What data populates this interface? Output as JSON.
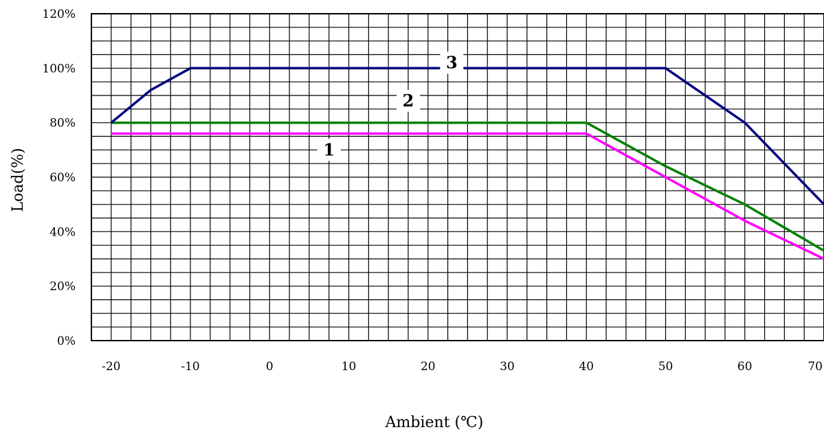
{
  "chart_data": {
    "type": "line",
    "xlabel": "Ambient (℃)",
    "ylabel": "Load(%)",
    "xlim": [
      -22.5,
      70
    ],
    "ylim": [
      0,
      120
    ],
    "x_ticks": [
      -20,
      -10,
      0,
      10,
      20,
      30,
      40,
      50,
      60,
      70
    ],
    "x_tick_labels": [
      "-20",
      "-10",
      "0",
      "10",
      "20",
      "30",
      "40",
      "50",
      "60",
      "70"
    ],
    "y_ticks": [
      0,
      20,
      40,
      60,
      80,
      100,
      120
    ],
    "y_tick_labels": [
      "0%",
      "20%",
      "40%",
      "60%",
      "80%",
      "100%",
      "120%"
    ],
    "grid": true,
    "series": [
      {
        "name": "1",
        "color": "#ff00ff",
        "x": [
          -20,
          40,
          60,
          70
        ],
        "y": [
          76,
          76,
          44,
          30
        ]
      },
      {
        "name": "2",
        "color": "#008000",
        "x": [
          -20,
          40,
          50,
          60,
          70
        ],
        "y": [
          80,
          80,
          64,
          50,
          33
        ]
      },
      {
        "name": "3",
        "color": "#000080",
        "x": [
          -20,
          -15,
          -10,
          50,
          60,
          70
        ],
        "y": [
          80,
          92,
          100,
          100,
          80,
          50
        ]
      }
    ],
    "series_labels": [
      {
        "text": "1",
        "x": 7.5,
        "y": 70
      },
      {
        "text": "2",
        "x": 17.5,
        "y": 88
      },
      {
        "text": "3",
        "x": 23,
        "y": 102
      }
    ]
  }
}
